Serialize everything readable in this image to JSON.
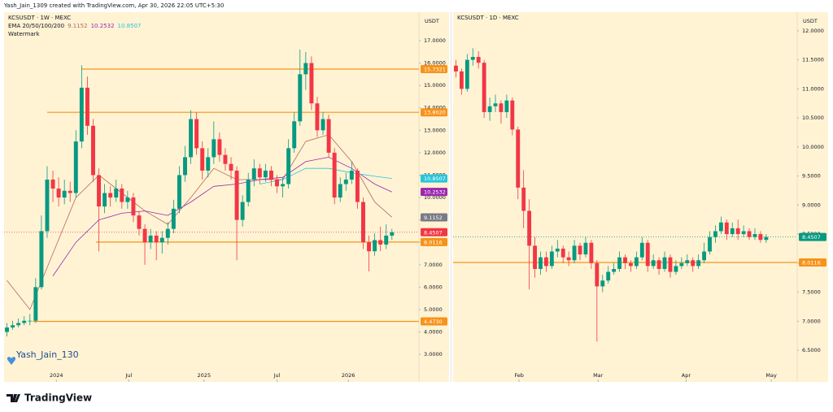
{
  "header": {
    "text": "Yash_Jain_1309 created with TradingView.com, Apr 30, 2026 22:05 UTC+5:30"
  },
  "footer": {
    "brand": "TradingView"
  },
  "chart_data": [
    {
      "type": "candlestick",
      "title": "KCSUSDT · 1W · MEXC",
      "indicator": "EMA 20/50/100/200",
      "watermark_label": "Watermark",
      "watermark": "Yash_Jain_130",
      "axis_unit": "USDT",
      "up_color": "#089981",
      "down_color": "#f23645",
      "xlim": [
        -0.5,
        71.7
      ],
      "ylim": [
        1.77,
        18.27
      ],
      "xticks": [
        {
          "value": 8.6,
          "label": "2024"
        },
        {
          "value": 21.2,
          "label": "Jul"
        },
        {
          "value": 34.3,
          "label": "2025"
        },
        {
          "value": 47.0,
          "label": "Jul"
        },
        {
          "value": 59.4,
          "label": "2026"
        }
      ],
      "yticks": [
        {
          "value": 3,
          "label": "3.0000"
        },
        {
          "value": 4,
          "label": "4.0000"
        },
        {
          "value": 5,
          "label": "5.0000"
        },
        {
          "value": 6,
          "label": "6.0000"
        },
        {
          "value": 7,
          "label": "7.0000"
        },
        {
          "value": 8,
          "label": "8.0000"
        },
        {
          "value": 9,
          "label": "9.0000"
        },
        {
          "value": 10,
          "label": "10.0000"
        },
        {
          "value": 11,
          "label": "11.0000"
        },
        {
          "value": 12,
          "label": "12.0000"
        },
        {
          "value": 13,
          "label": "13.0000"
        },
        {
          "value": 14,
          "label": "14.0000"
        },
        {
          "value": 15,
          "label": "15.0000"
        },
        {
          "value": 16,
          "label": "16.0000"
        },
        {
          "value": 17,
          "label": "17.0000"
        }
      ],
      "candles": [
        [
          4.0,
          4.4,
          3.8,
          4.2
        ],
        [
          4.2,
          4.5,
          4.1,
          4.3
        ],
        [
          4.3,
          4.6,
          4.2,
          4.4
        ],
        [
          4.4,
          4.7,
          4.3,
          4.5
        ],
        [
          4.5,
          4.8,
          4.3,
          4.5
        ],
        [
          4.5,
          6.4,
          4.4,
          6.0
        ],
        [
          6.0,
          9.2,
          5.9,
          8.5
        ],
        [
          8.5,
          11.4,
          8.2,
          10.8
        ],
        [
          10.8,
          11.2,
          9.8,
          10.4
        ],
        [
          10.4,
          10.9,
          9.6,
          10.0
        ],
        [
          10.0,
          10.8,
          9.7,
          10.3
        ],
        [
          10.3,
          10.7,
          9.8,
          10.2
        ],
        [
          10.2,
          13.0,
          10.0,
          12.5
        ],
        [
          12.5,
          15.9,
          12.2,
          14.9
        ],
        [
          14.9,
          15.4,
          12.8,
          13.2
        ],
        [
          13.2,
          13.5,
          10.7,
          11.0
        ],
        [
          11.0,
          11.3,
          7.6,
          9.6
        ],
        [
          9.6,
          10.6,
          9.3,
          10.2
        ],
        [
          10.2,
          10.5,
          9.6,
          10.0
        ],
        [
          10.0,
          10.8,
          9.8,
          10.4
        ],
        [
          10.4,
          10.6,
          9.5,
          9.8
        ],
        [
          9.8,
          10.3,
          9.5,
          10.0
        ],
        [
          10.0,
          10.2,
          8.9,
          9.2
        ],
        [
          9.2,
          9.4,
          8.3,
          8.6
        ],
        [
          8.6,
          8.8,
          7.0,
          8.0
        ],
        [
          8.0,
          8.6,
          7.7,
          8.3
        ],
        [
          8.3,
          8.5,
          7.2,
          8.0
        ],
        [
          8.0,
          8.5,
          7.5,
          8.2
        ],
        [
          8.2,
          8.9,
          7.9,
          8.6
        ],
        [
          8.6,
          9.9,
          8.4,
          9.5
        ],
        [
          9.5,
          11.4,
          9.3,
          11.0
        ],
        [
          11.0,
          12.3,
          10.7,
          11.8
        ],
        [
          11.8,
          13.9,
          11.5,
          13.5
        ],
        [
          13.5,
          13.8,
          11.9,
          12.2
        ],
        [
          12.2,
          12.5,
          10.8,
          11.2
        ],
        [
          11.2,
          12.2,
          10.9,
          11.8
        ],
        [
          11.8,
          13.4,
          11.5,
          12.6
        ],
        [
          12.6,
          12.9,
          11.6,
          11.9
        ],
        [
          11.9,
          12.2,
          11.2,
          11.5
        ],
        [
          11.5,
          11.8,
          10.8,
          11.2
        ],
        [
          11.2,
          11.4,
          7.2,
          9.0
        ],
        [
          9.0,
          10.1,
          8.7,
          9.8
        ],
        [
          9.8,
          11.1,
          9.6,
          10.8
        ],
        [
          10.8,
          11.7,
          10.5,
          11.3
        ],
        [
          11.3,
          11.5,
          10.6,
          10.9
        ],
        [
          10.9,
          11.5,
          10.7,
          11.2
        ],
        [
          11.2,
          11.4,
          10.5,
          10.8
        ],
        [
          10.8,
          11.0,
          10.2,
          10.5
        ],
        [
          10.5,
          10.9,
          10.0,
          10.6
        ],
        [
          10.6,
          12.6,
          10.4,
          12.2
        ],
        [
          12.2,
          13.8,
          12.0,
          13.4
        ],
        [
          13.4,
          16.6,
          13.2,
          15.5
        ],
        [
          15.5,
          16.5,
          14.8,
          16.0
        ],
        [
          16.0,
          16.3,
          13.9,
          14.2
        ],
        [
          14.2,
          14.5,
          12.7,
          13.0
        ],
        [
          13.0,
          13.8,
          12.8,
          13.5
        ],
        [
          13.5,
          13.7,
          11.8,
          12.0
        ],
        [
          12.0,
          12.2,
          9.7,
          10.0
        ],
        [
          10.0,
          10.9,
          9.8,
          10.6
        ],
        [
          10.6,
          11.1,
          10.3,
          10.8
        ],
        [
          10.8,
          11.6,
          10.6,
          11.2
        ],
        [
          11.2,
          11.3,
          9.5,
          9.8
        ],
        [
          9.8,
          10.0,
          7.7,
          8.0
        ],
        [
          8.0,
          8.3,
          6.7,
          7.6
        ],
        [
          7.6,
          8.4,
          7.4,
          8.1
        ],
        [
          8.1,
          8.7,
          7.6,
          7.9
        ],
        [
          7.9,
          8.8,
          7.7,
          8.3
        ],
        [
          8.3,
          8.6,
          8.1,
          8.45
        ]
      ],
      "series": [
        {
          "color": "#b2675e",
          "last": 9.1152,
          "box_color": "#787b86",
          "x": [
            0,
            4,
            8,
            12,
            16,
            20,
            24,
            28,
            32,
            36,
            40,
            44,
            48,
            52,
            56,
            60,
            64,
            67
          ],
          "values": [
            6.3,
            5.0,
            7.5,
            10.0,
            11.0,
            10.2,
            9.4,
            8.8,
            10.0,
            11.3,
            10.8,
            10.8,
            10.8,
            12.5,
            12.8,
            11.6,
            9.8,
            9.12
          ]
        },
        {
          "color": "#9c27b0",
          "last": 10.2532,
          "box_color": "#9c27b0",
          "x": [
            0,
            4,
            8,
            12,
            16,
            20,
            24,
            28,
            32,
            36,
            40,
            44,
            48,
            52,
            56,
            60,
            64,
            67
          ],
          "values": [
            null,
            null,
            6.5,
            8.0,
            9.0,
            9.3,
            9.4,
            9.2,
            9.8,
            10.5,
            10.6,
            10.8,
            10.9,
            11.6,
            11.8,
            11.3,
            10.6,
            10.25
          ]
        },
        {
          "color": "#26c6da",
          "last": 10.8507,
          "box_color": "#26c6da",
          "x": [
            44,
            48,
            52,
            56,
            60,
            64,
            67
          ],
          "values": [
            10.6,
            10.8,
            11.3,
            11.3,
            11.1,
            10.95,
            10.85
          ]
        }
      ],
      "levels": [
        {
          "value": 15.7321,
          "from": 13,
          "color": "#f7931a"
        },
        {
          "value": {
            "value": 13.802,
            "label": "13.8020"
          },
          "from": 7,
          "color": "#f7931a"
        },
        {
          "value": 8.0116,
          "from": 15.5,
          "color": "#f7931a"
        },
        {
          "value": {
            "value": 4.473,
            "label": "4.4730"
          },
          "from": 4.5,
          "color": "#f7931a"
        }
      ],
      "last_price": {
        "value": 8.4507,
        "color": "#f23645"
      }
    },
    {
      "type": "candlestick",
      "title": "KCSUSDT · 1D · MEXC",
      "axis_unit": "USDT",
      "up_color": "#089981",
      "down_color": "#f23645",
      "xlim": [
        -0.5,
        60.5
      ],
      "ylim": [
        5.955,
        12.32
      ],
      "xticks": [
        {
          "value": 11.2,
          "label": "Feb"
        },
        {
          "value": 25.2,
          "label": "Mar"
        },
        {
          "value": 40.8,
          "label": "Apr"
        },
        {
          "value": 55.9,
          "label": "May"
        }
      ],
      "yticks": [
        {
          "value": 6.5,
          "label": "6.5000"
        },
        {
          "value": 7,
          "label": "7.0000"
        },
        {
          "value": 7.5,
          "label": "7.5000"
        },
        {
          "value": 8,
          "label": "8.0000"
        },
        {
          "value": 8.5,
          "label": "8.5000"
        },
        {
          "value": 9,
          "label": "9.0000"
        },
        {
          "value": 9.5,
          "label": "9.5000"
        },
        {
          "value": 10,
          "label": "10.0000"
        },
        {
          "value": 10.5,
          "label": "10.5000"
        },
        {
          "value": 11,
          "label": "11.0000"
        },
        {
          "value": 11.5,
          "label": "11.5000"
        },
        {
          "value": 12,
          "label": "12.0000"
        }
      ],
      "candles": [
        [
          11.4,
          11.5,
          11.2,
          11.3
        ],
        [
          11.3,
          11.35,
          10.9,
          11.0
        ],
        [
          11.0,
          11.6,
          10.95,
          11.5
        ],
        [
          11.5,
          11.7,
          11.4,
          11.55
        ],
        [
          11.55,
          11.65,
          11.35,
          11.45
        ],
        [
          11.45,
          11.5,
          10.5,
          10.6
        ],
        [
          10.6,
          10.85,
          10.45,
          10.7
        ],
        [
          10.7,
          10.9,
          10.6,
          10.75
        ],
        [
          10.75,
          10.8,
          10.4,
          10.6
        ],
        [
          10.6,
          10.9,
          10.5,
          10.8
        ],
        [
          10.8,
          10.85,
          10.2,
          10.3
        ],
        [
          10.3,
          10.35,
          9.1,
          9.3
        ],
        [
          9.3,
          9.6,
          8.6,
          8.9
        ],
        [
          8.9,
          9.1,
          7.55,
          8.3
        ],
        [
          8.3,
          8.45,
          7.75,
          7.9
        ],
        [
          7.9,
          8.2,
          7.8,
          8.1
        ],
        [
          8.1,
          8.2,
          7.85,
          7.95
        ],
        [
          7.95,
          8.3,
          7.9,
          8.2
        ],
        [
          8.2,
          8.4,
          8.1,
          8.25
        ],
        [
          8.25,
          8.3,
          8.0,
          8.1
        ],
        [
          8.1,
          8.2,
          7.95,
          8.05
        ],
        [
          8.05,
          8.4,
          8.0,
          8.3
        ],
        [
          8.3,
          8.35,
          8.05,
          8.15
        ],
        [
          8.15,
          8.45,
          8.1,
          8.35
        ],
        [
          8.35,
          8.4,
          7.9,
          8.0
        ],
        [
          8.0,
          8.05,
          6.65,
          7.6
        ],
        [
          7.6,
          7.8,
          7.5,
          7.7
        ],
        [
          7.7,
          7.95,
          7.65,
          7.85
        ],
        [
          7.85,
          8.0,
          7.8,
          7.9
        ],
        [
          7.9,
          8.2,
          7.85,
          8.1
        ],
        [
          8.1,
          8.15,
          7.9,
          8.0
        ],
        [
          8.0,
          8.05,
          7.85,
          7.95
        ],
        [
          7.95,
          8.2,
          7.9,
          8.1
        ],
        [
          8.1,
          8.45,
          8.05,
          8.35
        ],
        [
          8.35,
          8.4,
          7.85,
          7.95
        ],
        [
          7.95,
          8.15,
          7.9,
          8.05
        ],
        [
          8.05,
          8.1,
          7.8,
          7.9
        ],
        [
          7.9,
          8.2,
          7.85,
          8.1
        ],
        [
          8.1,
          8.15,
          7.75,
          7.85
        ],
        [
          7.85,
          8.05,
          7.8,
          7.95
        ],
        [
          7.95,
          8.1,
          7.9,
          8.0
        ],
        [
          8.0,
          8.15,
          7.95,
          8.05
        ],
        [
          8.05,
          8.1,
          7.85,
          7.95
        ],
        [
          7.95,
          8.15,
          7.9,
          8.05
        ],
        [
          8.05,
          8.35,
          8.0,
          8.2
        ],
        [
          8.2,
          8.55,
          8.15,
          8.45
        ],
        [
          8.45,
          8.65,
          8.35,
          8.55
        ],
        [
          8.55,
          8.8,
          8.5,
          8.7
        ],
        [
          8.7,
          8.75,
          8.4,
          8.5
        ],
        [
          8.5,
          8.7,
          8.45,
          8.6
        ],
        [
          8.6,
          8.75,
          8.4,
          8.5
        ],
        [
          8.5,
          8.65,
          8.45,
          8.55
        ],
        [
          8.55,
          8.6,
          8.4,
          8.45
        ],
        [
          8.45,
          8.6,
          8.4,
          8.5
        ],
        [
          8.5,
          8.55,
          8.35,
          8.4
        ],
        [
          8.4,
          8.5,
          8.35,
          8.45
        ]
      ],
      "levels": [
        {
          "value": 8.0116,
          "from": -0.5,
          "color": "#f7931a"
        }
      ],
      "last_price": {
        "value": 8.4507,
        "color": "#089981"
      }
    }
  ]
}
